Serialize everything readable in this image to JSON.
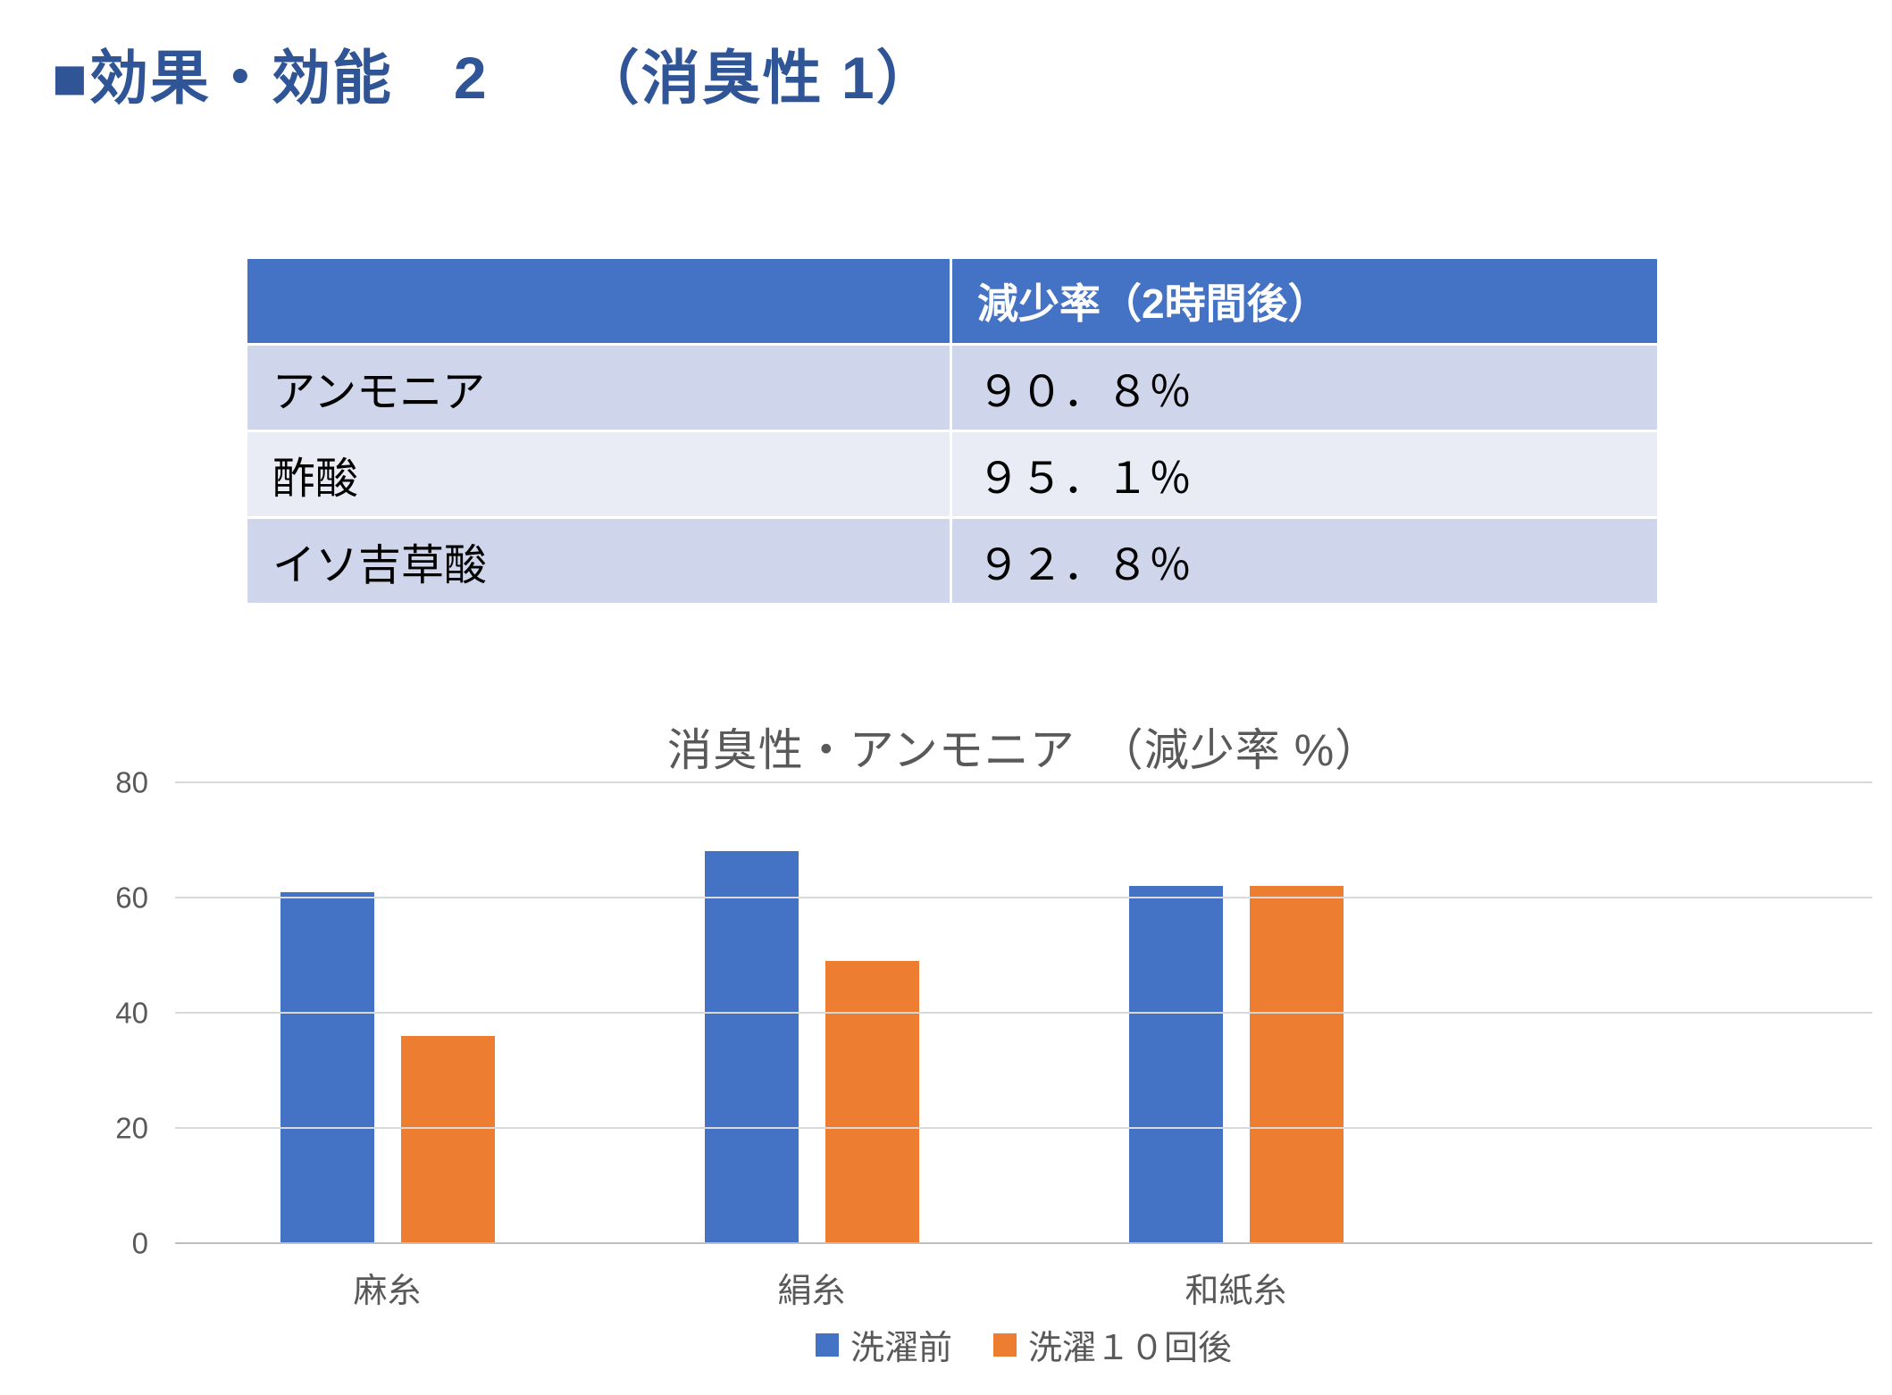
{
  "slide": {
    "title": "■効果・効能　2　　（消臭性 1）"
  },
  "table": {
    "header": [
      "",
      "減少率（2時間後）"
    ],
    "rows": [
      {
        "label": "アンモニア",
        "value": "９０．８％"
      },
      {
        "label": "酢酸",
        "value": "９５．１％"
      },
      {
        "label": "イソ吉草酸",
        "value": "９２．８％"
      }
    ]
  },
  "chart_data": {
    "type": "bar",
    "title": "消臭性・アンモニア　（減少率 %）",
    "categories": [
      "麻糸",
      "絹糸",
      "和紙糸"
    ],
    "series": [
      {
        "name": "洗濯前",
        "color": "#4472C4",
        "values": [
          61,
          68,
          62
        ]
      },
      {
        "name": "洗濯１０回後",
        "color": "#ED7D31",
        "values": [
          36,
          49,
          62
        ]
      }
    ],
    "ylim": [
      0,
      80
    ],
    "yticks": [
      0,
      20,
      40,
      60,
      80
    ],
    "grid": true,
    "legend_position": "bottom",
    "slot_count": 4
  },
  "colors": {
    "title_text": "#2F5597",
    "table_header_bg": "#4472C4",
    "table_header_text": "#FFFFFF",
    "table_band_dark": "#CFD5EA",
    "table_band_light": "#E9EBF5",
    "gridline": "#D9D9D9",
    "axis_line": "#BFBFBF",
    "chart_text": "#595959"
  }
}
